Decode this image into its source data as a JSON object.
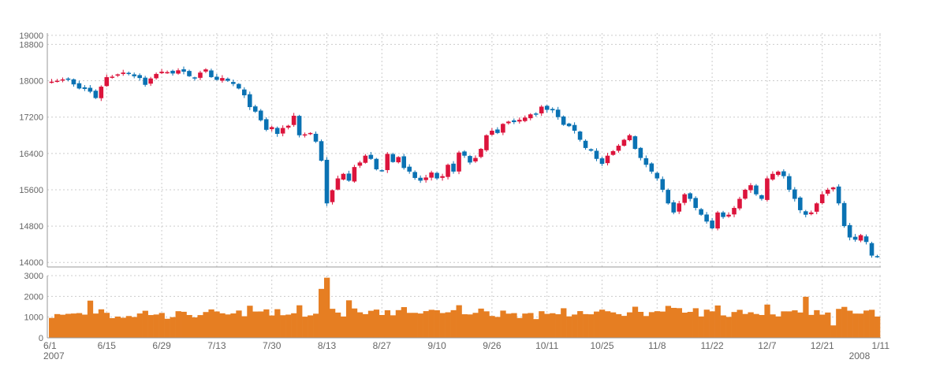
{
  "chart_data": {
    "type": "candlestick",
    "colors": {
      "up": "#dc143c",
      "down": "#0a72b3",
      "volume": "#e67e22",
      "grid": "#cccccc",
      "axis": "#999999"
    },
    "price_axis": {
      "ylim": [
        13900,
        19050
      ],
      "ticks": [
        "14000",
        "14800",
        "15600",
        "16400",
        "17200",
        "18000",
        "18800",
        "19000"
      ]
    },
    "volume_axis": {
      "ylim": [
        0,
        3000
      ],
      "ticks": [
        "0",
        "1000",
        "2000",
        "3000"
      ]
    },
    "x_ticks": [
      {
        "label": "6/1",
        "index": 0
      },
      {
        "label": "6/15",
        "index": 10
      },
      {
        "label": "6/29",
        "index": 20
      },
      {
        "label": "7/13",
        "index": 30
      },
      {
        "label": "7/30",
        "index": 40
      },
      {
        "label": "8/13",
        "index": 50
      },
      {
        "label": "8/27",
        "index": 60
      },
      {
        "label": "9/10",
        "index": 70
      },
      {
        "label": "9/26",
        "index": 80
      },
      {
        "label": "10/11",
        "index": 90
      },
      {
        "label": "10/25",
        "index": 100
      },
      {
        "label": "11/8",
        "index": 110
      },
      {
        "label": "11/22",
        "index": 120
      },
      {
        "label": "12/7",
        "index": 130
      },
      {
        "label": "12/21",
        "index": 140
      },
      {
        "label": "1/11",
        "index": 150
      }
    ],
    "year_labels": [
      {
        "label": "2007",
        "index": 0
      },
      {
        "label": "2008",
        "index": 146
      }
    ],
    "close": [
      17980,
      18000,
      18030,
      18020,
      17920,
      17830,
      17820,
      17760,
      17620,
      17870,
      18080,
      18090,
      18140,
      18180,
      18150,
      18100,
      18060,
      17910,
      18050,
      18150,
      18200,
      18190,
      18160,
      18230,
      18200,
      18100,
      18050,
      18180,
      18250,
      18080,
      18020,
      18060,
      18000,
      17930,
      17830,
      17680,
      17420,
      17320,
      17130,
      16920,
      16980,
      16830,
      16960,
      17010,
      17230,
      16800,
      16820,
      16850,
      16660,
      16240,
      15300,
      15590,
      15850,
      15950,
      15800,
      16100,
      16200,
      16350,
      16280,
      16050,
      16030,
      16390,
      16210,
      16320,
      16080,
      16000,
      15860,
      15800,
      15870,
      15980,
      15850,
      15900,
      16150,
      16000,
      16420,
      16350,
      16200,
      16300,
      16500,
      16800,
      16900,
      16850,
      17050,
      17100,
      17090,
      17140,
      17190,
      17260,
      17270,
      17430,
      17360,
      17350,
      17200,
      17030,
      17000,
      16900,
      16700,
      16520,
      16460,
      16280,
      16170,
      16350,
      16450,
      16570,
      16700,
      16800,
      16500,
      16300,
      16150,
      16000,
      15850,
      15600,
      15300,
      15100,
      15300,
      15500,
      15400,
      15200,
      15050,
      14900,
      14750,
      15100,
      15000,
      15050,
      15200,
      15400,
      15600,
      15700,
      15500,
      15400,
      15850,
      15950,
      16000,
      15900,
      15600,
      15400,
      15150,
      15050,
      15100,
      15300,
      15500,
      15600,
      15650,
      15300,
      14800,
      14550,
      14500,
      14600,
      14450,
      14150,
      14120
    ]
  }
}
